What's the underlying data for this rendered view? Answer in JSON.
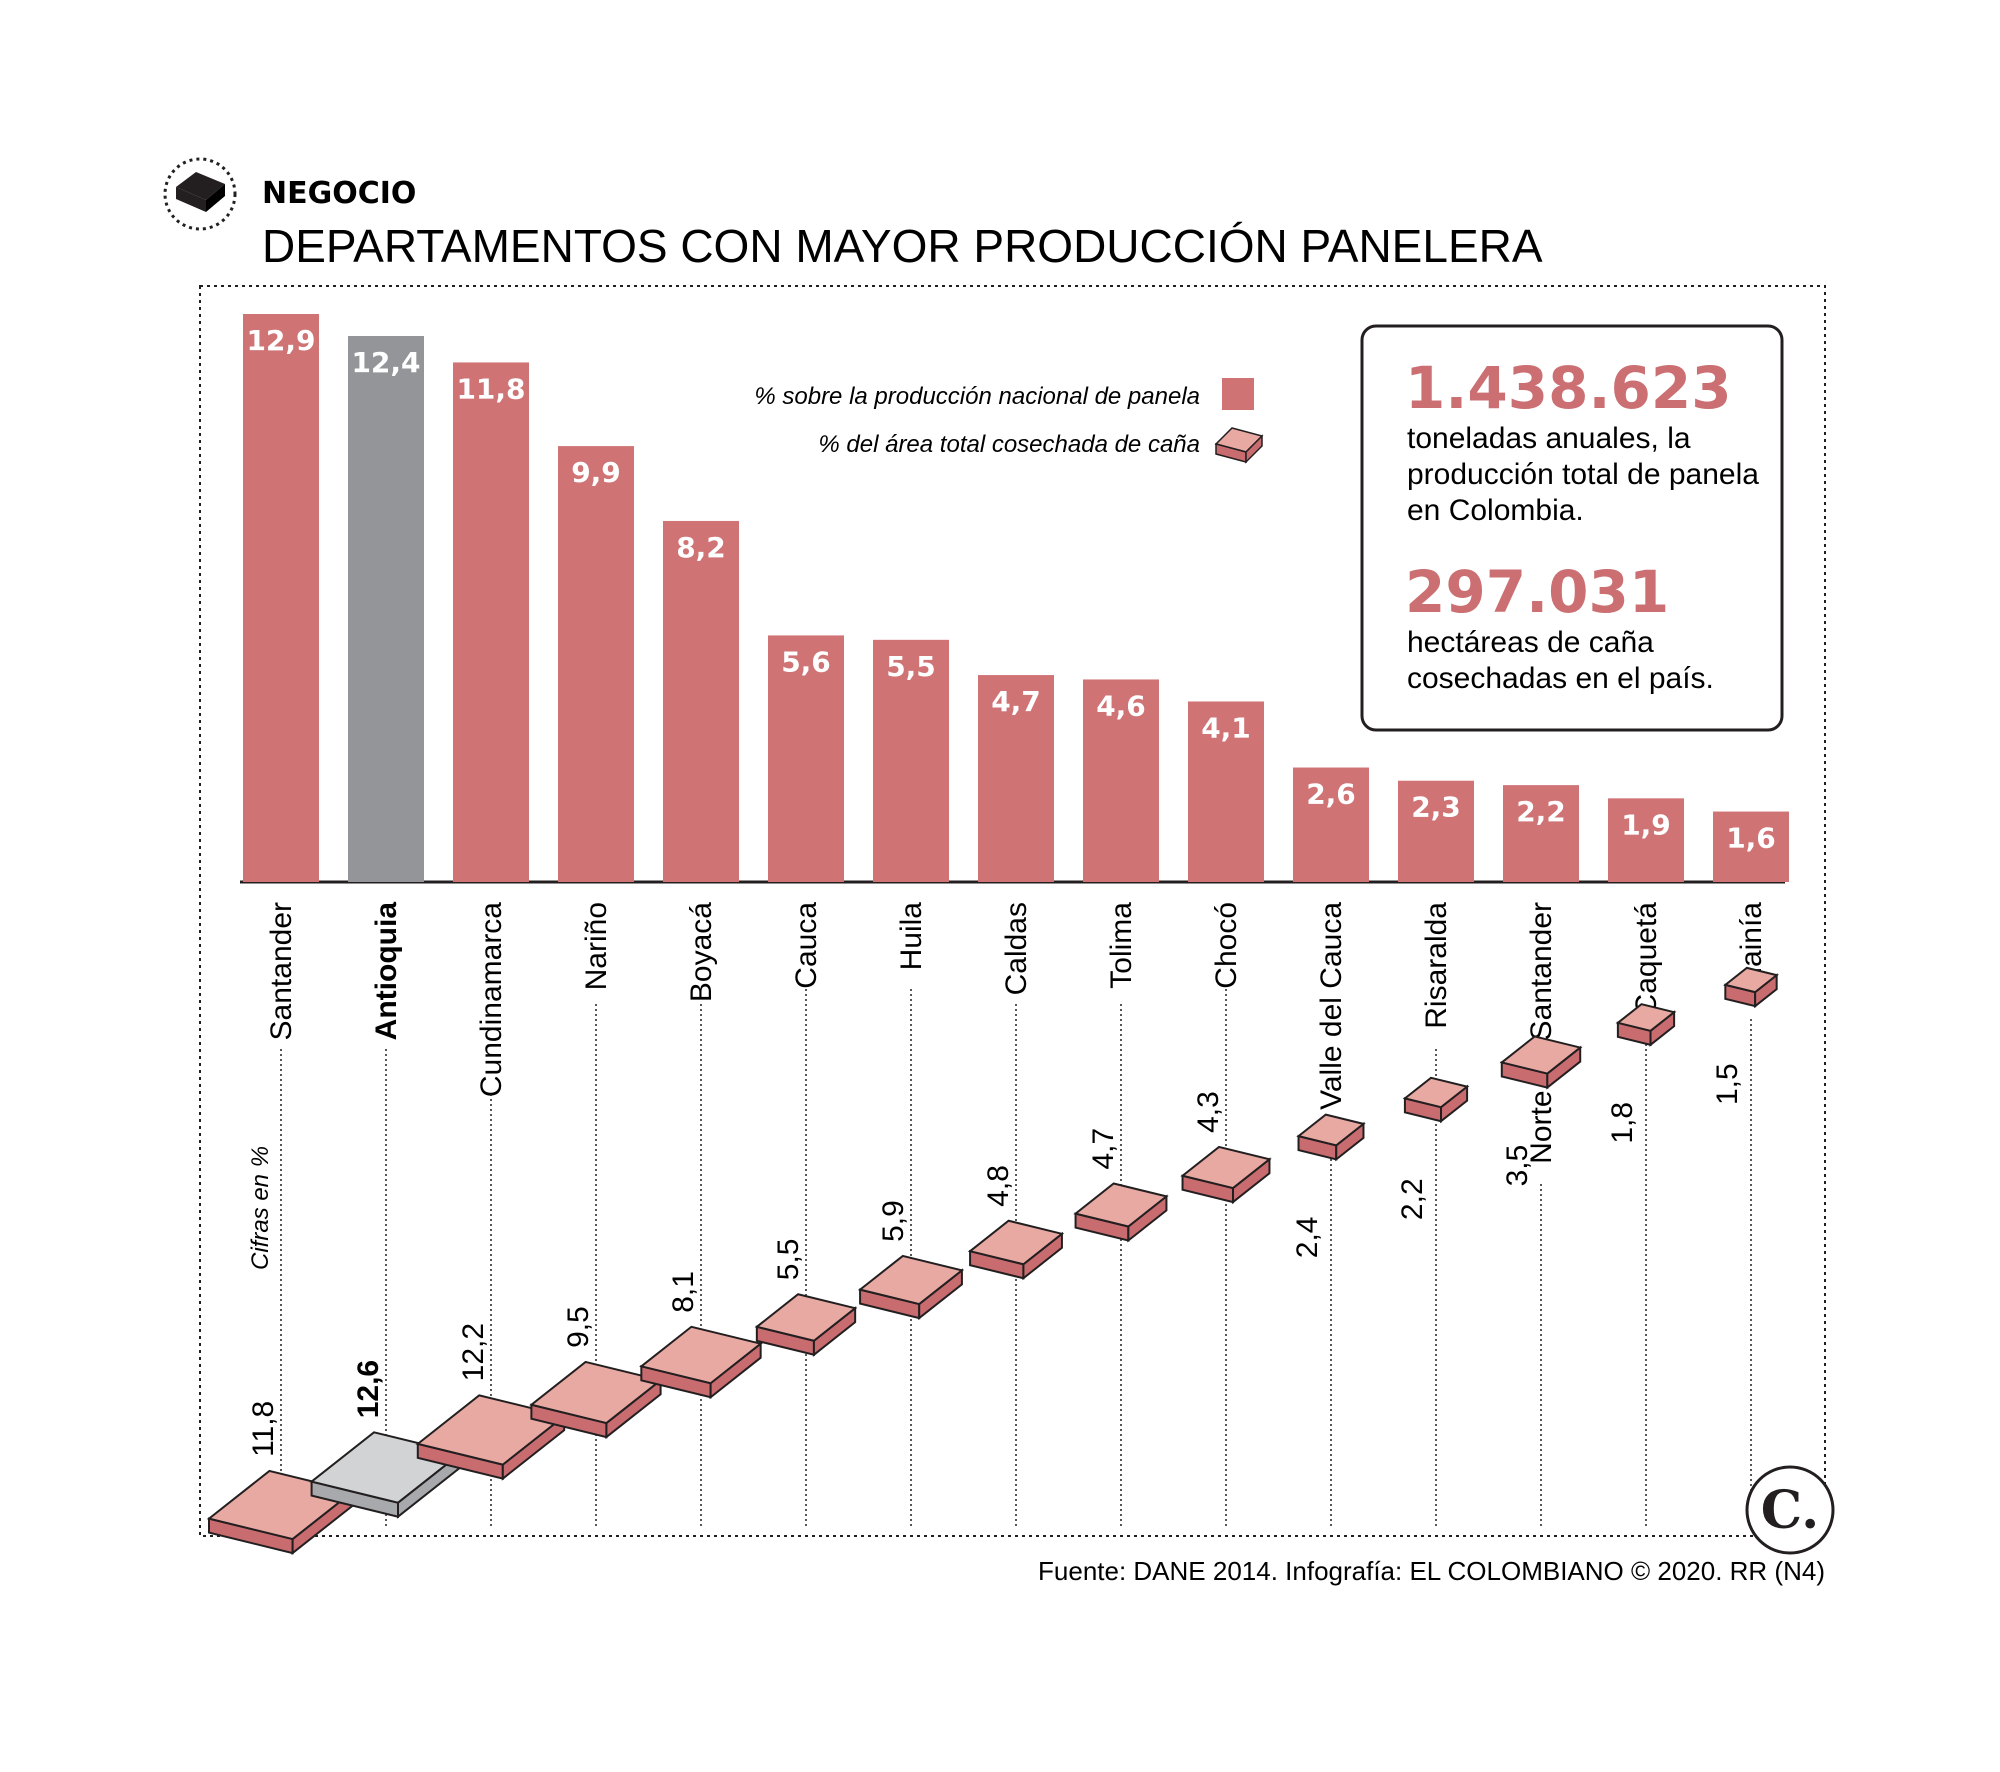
{
  "header": {
    "section": "NEGOCIO",
    "title": "DEPARTAMENTOS CON MAYOR PRODUCCIÓN PANELERA"
  },
  "legend": {
    "production": "% sobre la producción nacional de panela",
    "area": "% del área total cosechada de caña"
  },
  "units_note": "Cifras en %",
  "stats": {
    "production_value": "1.438.623",
    "production_lines": [
      "toneladas anuales, la",
      "producción total de panela",
      "en Colombia."
    ],
    "area_value": "297.031",
    "area_lines": [
      "hectáreas de caña",
      "cosechadas en el país."
    ]
  },
  "footer": {
    "source": "Fuente: DANE 2014. Infografía: EL COLOMBIANO © 2020. RR (N4)",
    "logo": "C."
  },
  "colors": {
    "bar": "#cf7375",
    "highlight_bar": "#939598",
    "tile_top": "#e8a9a2",
    "tile_side": "#c96c6f",
    "tile_highlight_top": "#d1d3d4",
    "tile_highlight_side": "#a7a9ac",
    "accent_text": "#cb6f72"
  },
  "chart_data": {
    "type": "bar",
    "title": "DEPARTAMENTOS CON MAYOR PRODUCCIÓN PANELERA",
    "categories": [
      "Santander",
      "Antioquia",
      "Cundinamarca",
      "Nariño",
      "Boyacá",
      "Cauca",
      "Huila",
      "Caldas",
      "Tolima",
      "Chocó",
      "Valle del Cauca",
      "Risaralda",
      "Norte de Santander",
      "Caquetá",
      "Guainía"
    ],
    "highlight": "Antioquia",
    "series": [
      {
        "name": "% sobre la producción nacional de panela",
        "values": [
          12.9,
          12.4,
          11.8,
          9.9,
          8.2,
          5.6,
          5.5,
          4.7,
          4.6,
          4.1,
          2.6,
          2.3,
          2.2,
          1.9,
          1.6
        ],
        "labels": [
          "12,9",
          "12,4",
          "11,8",
          "9,9",
          "8,2",
          "5,6",
          "5,5",
          "4,7",
          "4,6",
          "4,1",
          "2,6",
          "2,3",
          "2,2",
          "1,9",
          "1,6"
        ]
      },
      {
        "name": "% del área total cosechada de caña",
        "values": [
          11.8,
          12.6,
          12.2,
          9.5,
          8.1,
          5.5,
          5.9,
          4.8,
          4.7,
          4.3,
          2.4,
          2.2,
          3.5,
          1.8,
          1.5
        ],
        "labels": [
          "11,8",
          "12,6",
          "12,2",
          "9,5",
          "8,1",
          "5,5",
          "5,9",
          "4,8",
          "4,7",
          "4,3",
          "2,4",
          "2,2",
          "3,5",
          "1,8",
          "1,5"
        ]
      }
    ],
    "ylim": [
      0,
      13
    ],
    "grid": false,
    "legend_position": "top-center"
  }
}
